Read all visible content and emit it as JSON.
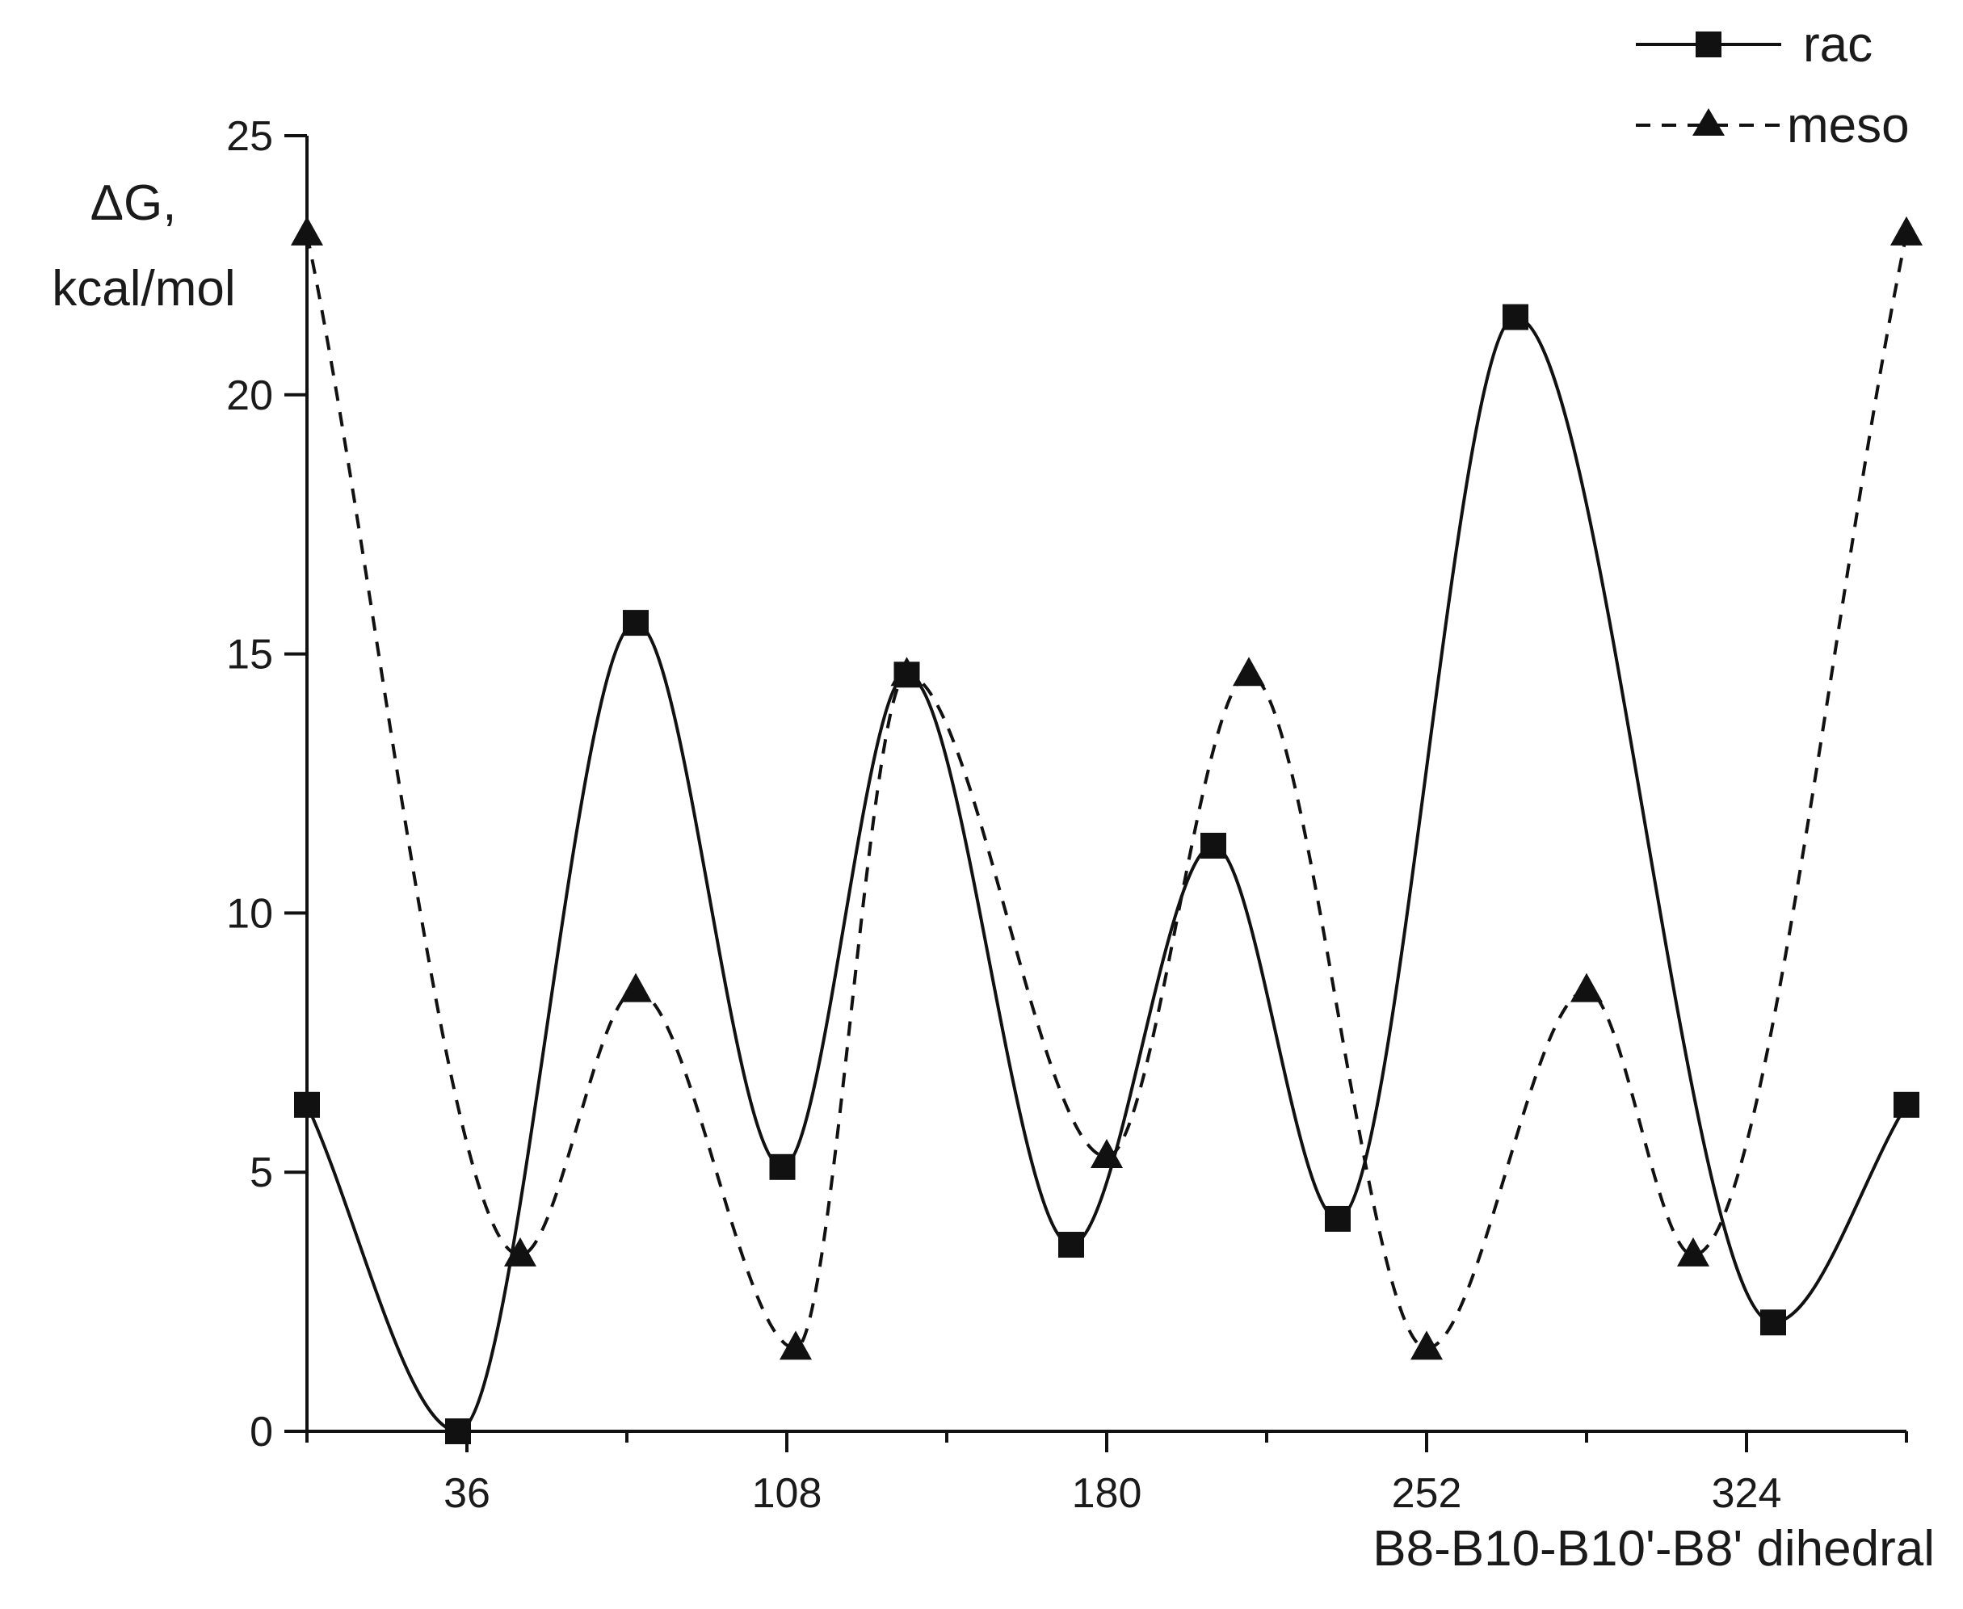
{
  "chart_data": {
    "type": "line",
    "xlabel": "B8-B10-B10'-B8' dihedral",
    "ylabel_line1": "ΔG,",
    "ylabel_line2": "kcal/mol",
    "xlim": [
      0,
      360
    ],
    "ylim": [
      0,
      25
    ],
    "xticks": [
      36,
      108,
      180,
      252,
      324
    ],
    "xtick_labels": [
      "36",
      "108",
      "180",
      "252",
      "324"
    ],
    "x_minor_ticks": [
      0,
      72,
      144,
      216,
      288,
      360
    ],
    "yticks": [
      0,
      5,
      10,
      15,
      20,
      25
    ],
    "ytick_labels": [
      "0",
      "5",
      "10",
      "15",
      "20",
      "25"
    ],
    "legend_position": "top-right",
    "grid": false,
    "series": [
      {
        "name": "rac",
        "line_style": "solid",
        "marker": "square",
        "color": "#111111",
        "x": [
          0,
          34,
          74,
          107,
          135,
          172,
          204,
          232,
          272,
          330,
          360
        ],
        "y": [
          6.3,
          0.0,
          15.6,
          5.1,
          14.6,
          3.6,
          11.3,
          4.1,
          21.5,
          2.1,
          6.3
        ]
      },
      {
        "name": "meso",
        "legend_label": "meso",
        "line_style": "dashed",
        "marker": "triangle",
        "color": "#111111",
        "x": [
          0,
          48,
          74,
          110,
          135,
          180,
          212,
          252,
          288,
          312,
          360
        ],
        "y": [
          23.1,
          3.4,
          8.5,
          1.6,
          14.6,
          5.3,
          14.6,
          1.6,
          8.5,
          3.4,
          23.1
        ]
      }
    ]
  }
}
